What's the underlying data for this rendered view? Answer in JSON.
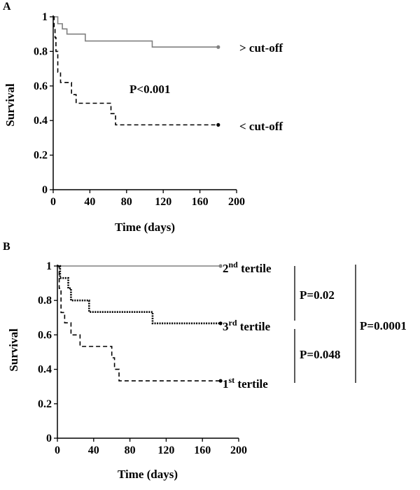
{
  "chart_data": [
    {
      "type": "line",
      "panel": "A",
      "xlabel": "Time (days)",
      "ylabel": "Survival",
      "xlim": [
        0,
        200
      ],
      "ylim": [
        0,
        1
      ],
      "xticks": [
        "0",
        "40",
        "80",
        "120",
        "160",
        "200"
      ],
      "yticks": [
        "0",
        "0.2",
        "0.4",
        "0.6",
        "0.8",
        "1"
      ],
      "grid": false,
      "step": true,
      "annotation": "P<0.001",
      "series": [
        {
          "name": "> cut-off",
          "color": "#808080",
          "style": "solid",
          "x": [
            0,
            5,
            10,
            15,
            35,
            108,
            180
          ],
          "y": [
            1,
            0.96,
            0.93,
            0.9,
            0.86,
            0.825,
            0.825
          ]
        },
        {
          "name": "< cut-off",
          "color": "#000000",
          "style": "dashed",
          "x": [
            0,
            1,
            2,
            3,
            5,
            8,
            20,
            25,
            60,
            63,
            68,
            180
          ],
          "y": [
            1,
            0.94,
            0.88,
            0.8,
            0.68,
            0.62,
            0.55,
            0.5,
            0.5,
            0.44,
            0.375,
            0.375
          ]
        }
      ]
    },
    {
      "type": "line",
      "panel": "B",
      "xlabel": "Time (days)",
      "ylabel": "Survival",
      "xlim": [
        0,
        200
      ],
      "ylim": [
        0,
        1
      ],
      "xticks": [
        "0",
        "40",
        "80",
        "120",
        "160",
        "200"
      ],
      "yticks": [
        "0",
        "0.2",
        "0.4",
        "0.6",
        "0.8",
        "1"
      ],
      "grid": false,
      "step": true,
      "series": [
        {
          "name": "2nd tertile",
          "label_main": "2",
          "label_sup": "nd",
          "label_tail": " tertile",
          "color": "#808080",
          "style": "solid",
          "x": [
            0,
            180
          ],
          "y": [
            1,
            1
          ]
        },
        {
          "name": "3rd tertile",
          "label_main": "3",
          "label_sup": "rd",
          "label_tail": " tertile",
          "color": "#000000",
          "style": "dotted",
          "x": [
            0,
            3,
            5,
            12,
            15,
            35,
            105,
            180
          ],
          "y": [
            1,
            0.93,
            0.93,
            0.87,
            0.8,
            0.733,
            0.667,
            0.667
          ]
        },
        {
          "name": "1st tertile",
          "label_main": "1",
          "label_sup": "st",
          "label_tail": " tertile",
          "color": "#000000",
          "style": "dashed",
          "x": [
            0,
            2,
            4,
            8,
            15,
            25,
            60,
            63,
            68,
            180
          ],
          "y": [
            1,
            0.87,
            0.73,
            0.67,
            0.6,
            0.533,
            0.467,
            0.4,
            0.333,
            0.333
          ]
        }
      ],
      "comparisons": [
        {
          "label": "P=0.02"
        },
        {
          "label": "P=0.048"
        },
        {
          "label": "P=0.0001"
        }
      ]
    }
  ]
}
